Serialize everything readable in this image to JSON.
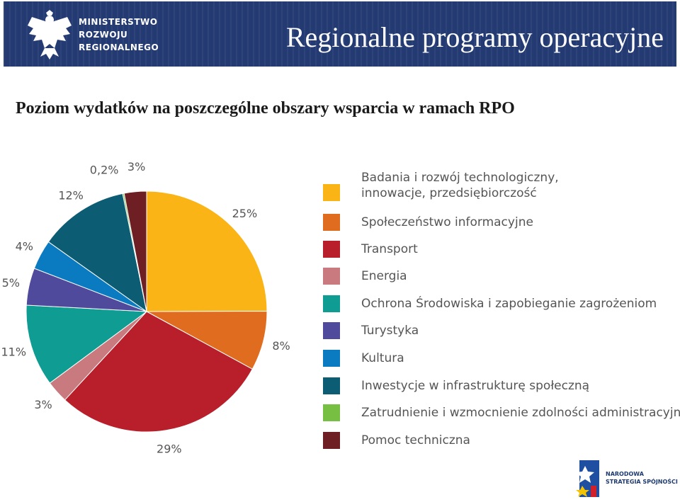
{
  "header": {
    "ministry_line1": "MINISTERSTWO",
    "ministry_line2": "ROZWOJU",
    "ministry_line3": "REGIONALNEGO",
    "title": "Regionalne programy operacyjne",
    "background_color": "#233a72"
  },
  "subtitle": "Poziom wydatków na poszczególne obszary wsparcia w ramach RPO",
  "chart_data": {
    "type": "pie",
    "title": "",
    "slices": [
      {
        "label": "Badania i rozwój technologiczny, innowacje, przedsiębiorczość",
        "value": 25,
        "value_label": "25%",
        "color": "#fbb416"
      },
      {
        "label": "Społeczeństwo informacyjne",
        "value": 8,
        "value_label": "8%",
        "color": "#e06c1f"
      },
      {
        "label": "Transport",
        "value": 29,
        "value_label": "29%",
        "color": "#b91f2b"
      },
      {
        "label": "Energia",
        "value": 3,
        "value_label": "3%",
        "color": "#c97a7e"
      },
      {
        "label": "Ochrona Środowiska i zapobieganie zagrożeniom",
        "value": 11,
        "value_label": "11%",
        "color": "#0f9c92"
      },
      {
        "label": "Turystyka",
        "value": 5,
        "value_label": "5%",
        "color": "#4f4a9b"
      },
      {
        "label": "Kultura",
        "value": 4,
        "value_label": "4%",
        "color": "#0a7ac1"
      },
      {
        "label": "Inwestycje w infrastrukturę społeczną",
        "value": 12,
        "value_label": "12%",
        "color": "#0c5c73"
      },
      {
        "label": "Zatrudnienie i wzmocnienie zdolności administracyjnych",
        "value": 0.2,
        "value_label": "0,2%",
        "color": "#76bf43"
      },
      {
        "label": "Pomoc techniczna",
        "value": 3,
        "value_label": "3%",
        "color": "#6e1f24"
      }
    ],
    "legend_position": "right",
    "legend": [
      {
        "lines": [
          "Badania i rozwój technologiczny,",
          "innowacje, przedsiębiorczość"
        ],
        "color": "#fbb416"
      },
      {
        "lines": [
          "Społeczeństwo informacyjne"
        ],
        "color": "#e06c1f"
      },
      {
        "lines": [
          "Transport"
        ],
        "color": "#b91f2b"
      },
      {
        "lines": [
          "Energia"
        ],
        "color": "#c97a7e"
      },
      {
        "lines": [
          "Ochrona Środowiska i zapobieganie zagrożeniom"
        ],
        "color": "#0f9c92"
      },
      {
        "lines": [
          "Turystyka"
        ],
        "color": "#4f4a9b"
      },
      {
        "lines": [
          "Kultura"
        ],
        "color": "#0a7ac1"
      },
      {
        "lines": [
          "Inwestycje w infrastrukturę społeczną"
        ],
        "color": "#0c5c73"
      },
      {
        "lines": [
          "Zatrudnienie i wzmocnienie zdolności administracyjnych"
        ],
        "color": "#76bf43"
      },
      {
        "lines": [
          "Pomoc techniczna"
        ],
        "color": "#6e1f24"
      }
    ]
  },
  "footer_logo": {
    "line1": "NARODOWA",
    "line2": "STRATEGIA SPÓJNOŚCI"
  }
}
